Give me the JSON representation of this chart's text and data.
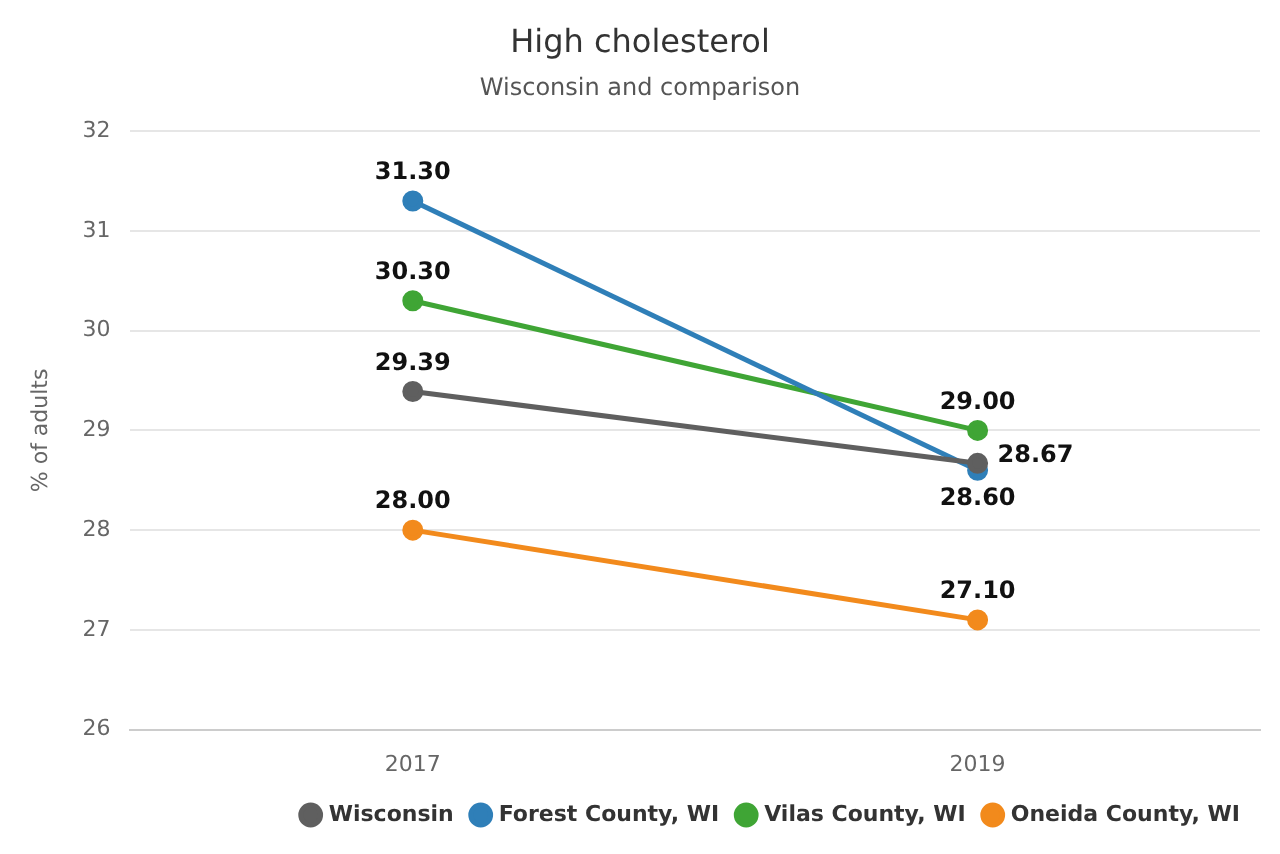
{
  "chart_data": {
    "type": "line",
    "title": "High cholesterol",
    "subtitle": "Wisconsin and comparison",
    "ylabel": "% of adults",
    "categories": [
      "2017",
      "2019"
    ],
    "series": [
      {
        "name": "Wisconsin",
        "color": "#5f5f5f",
        "values": [
          29.39,
          28.67
        ],
        "value_labels": [
          "29.39",
          "28.67"
        ]
      },
      {
        "name": "Forest County, WI",
        "color": "#2f7fb8",
        "values": [
          31.3,
          28.6
        ],
        "value_labels": [
          "31.30",
          "28.60"
        ]
      },
      {
        "name": "Vilas County, WI",
        "color": "#3fa535",
        "values": [
          30.3,
          29.0
        ],
        "value_labels": [
          "30.30",
          "29.00"
        ]
      },
      {
        "name": "Oneida County, WI",
        "color": "#f28a1c",
        "values": [
          28.0,
          27.1
        ],
        "value_labels": [
          "28.00",
          "27.10"
        ]
      }
    ],
    "ylim": [
      26,
      32
    ],
    "yticks": [
      26,
      27,
      28,
      29,
      30,
      31,
      32
    ],
    "grid": "y",
    "legend": "bottom",
    "marker": "circle",
    "line_style": "solid"
  }
}
